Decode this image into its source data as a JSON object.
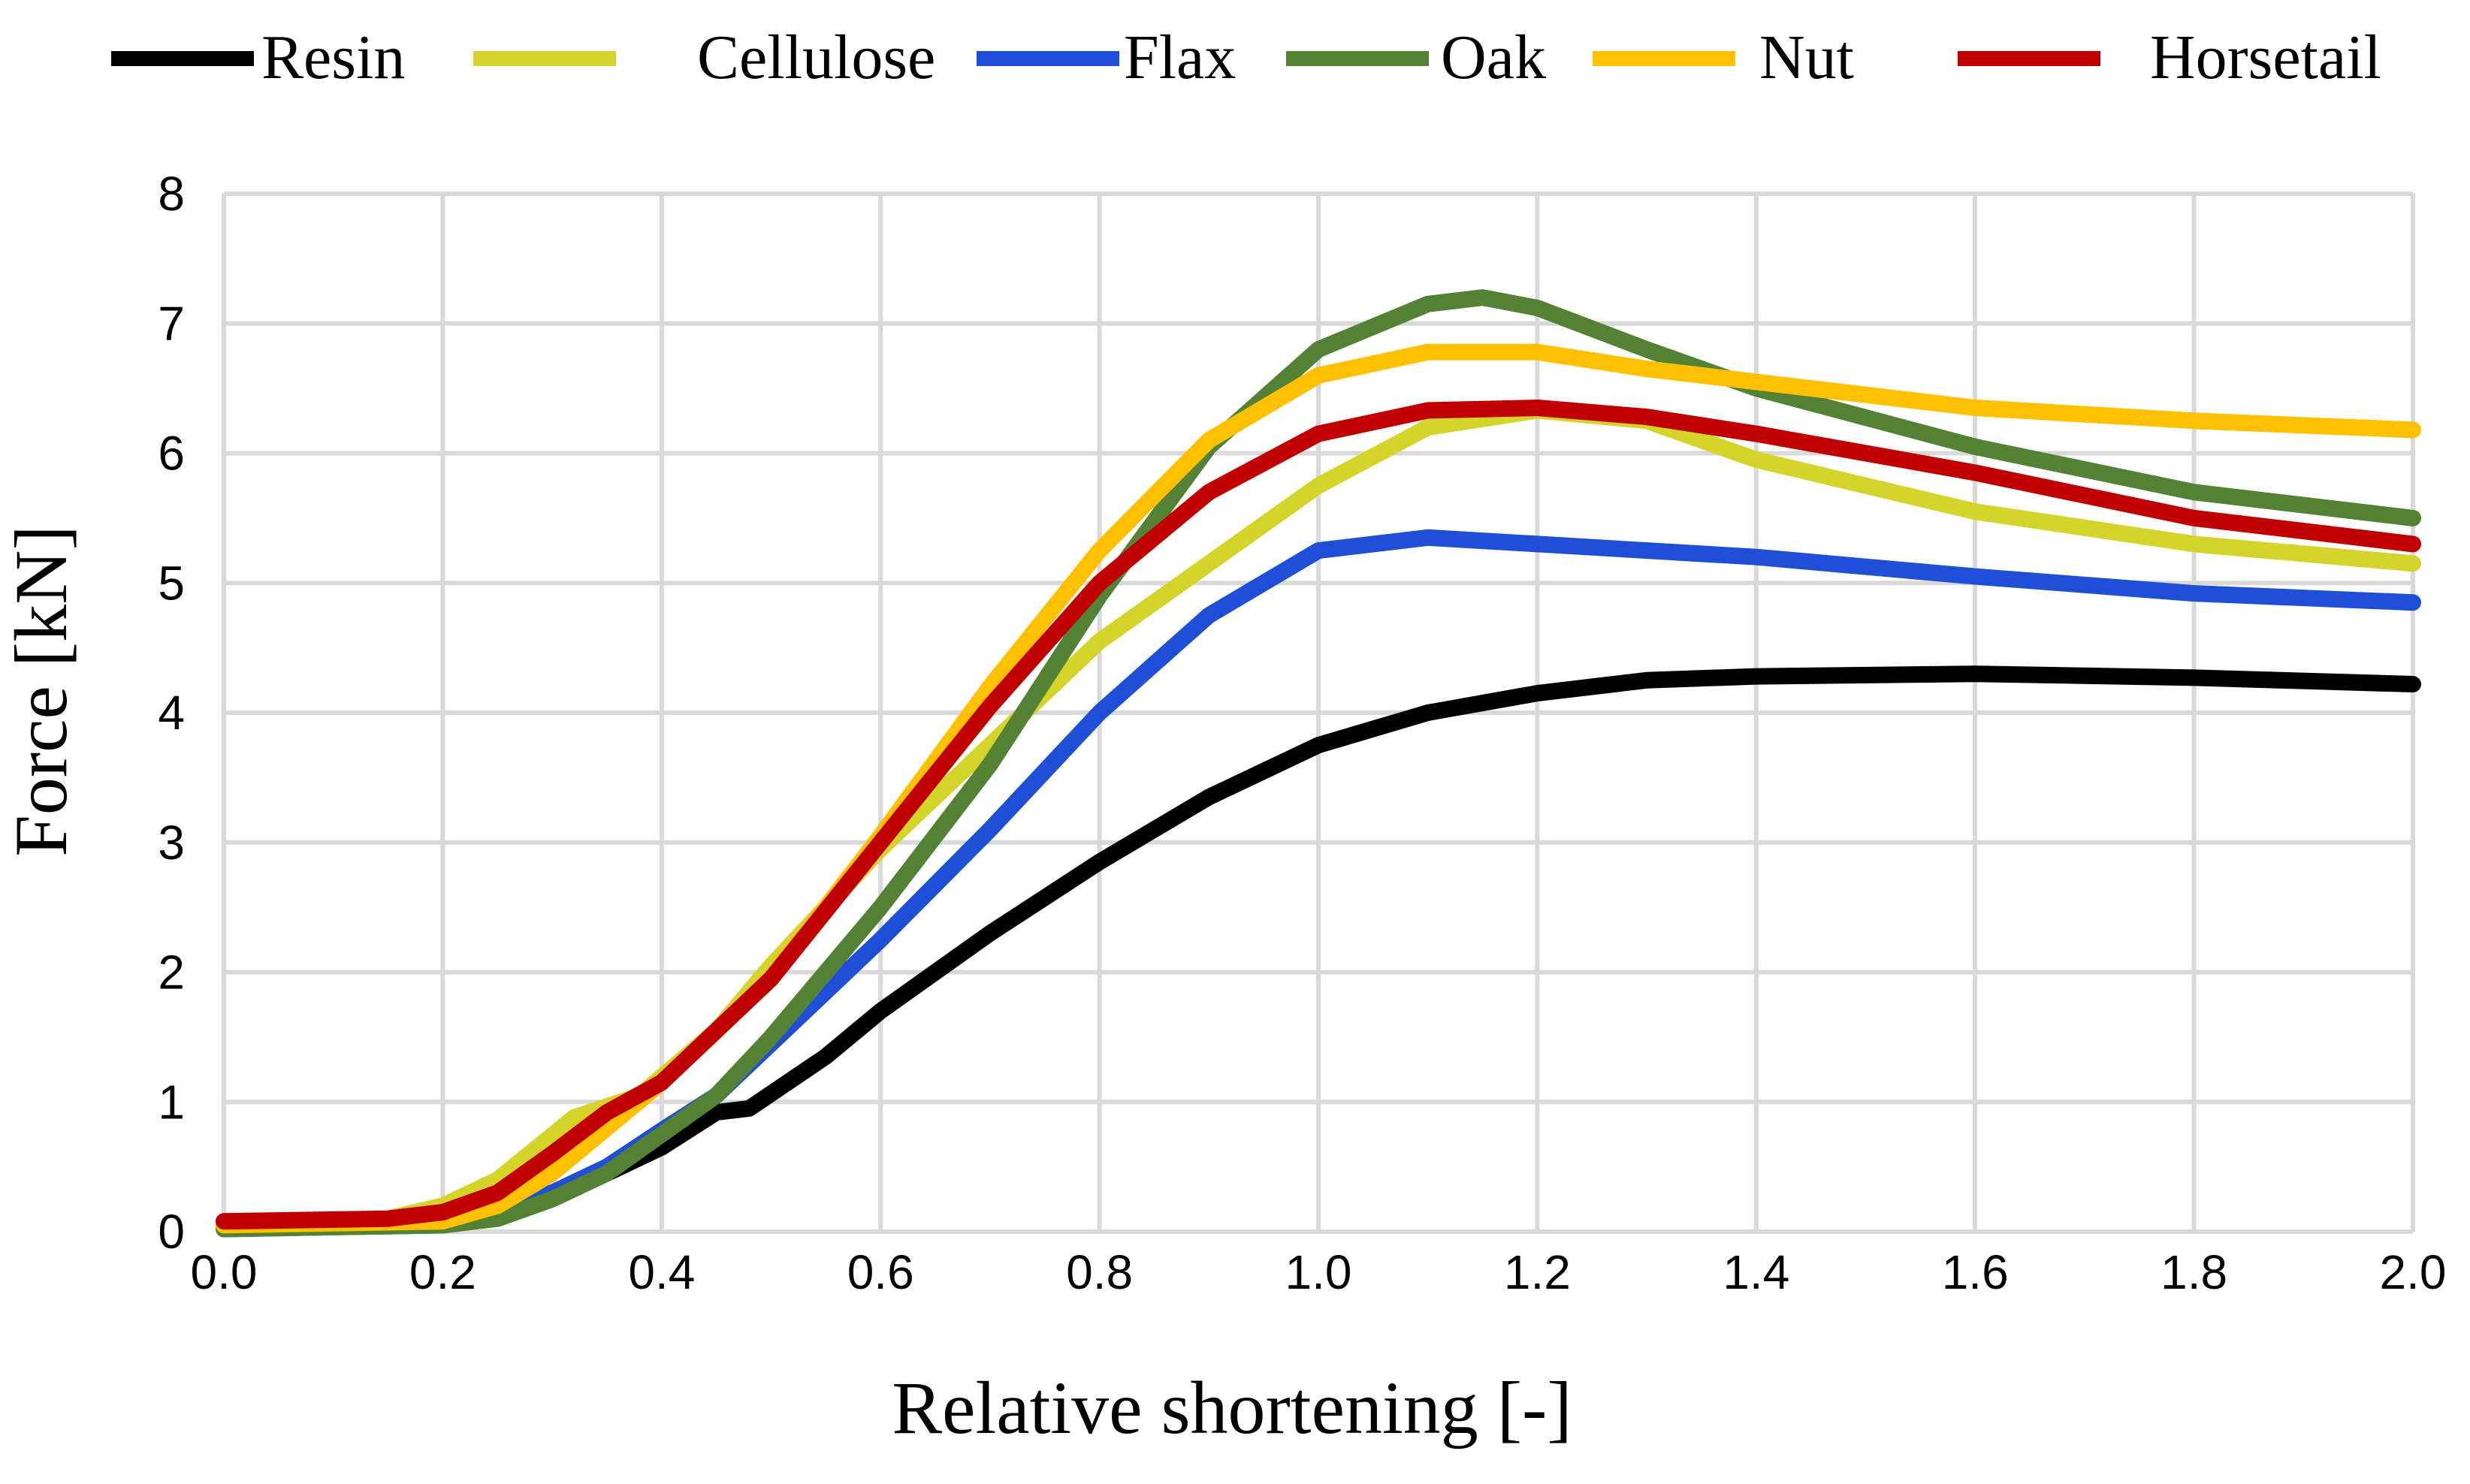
{
  "chart_data": {
    "type": "line",
    "title": "",
    "xlabel": "Relative shortening [-]",
    "ylabel": "Force [kN]",
    "xlim": [
      0,
      2
    ],
    "ylim": [
      0,
      8
    ],
    "grid": true,
    "legend_position": "top",
    "x_ticks": [
      "0.0",
      "0.2",
      "0.4",
      "0.6",
      "0.8",
      "1.0",
      "1.2",
      "1.4",
      "1.6",
      "1.8",
      "2.0"
    ],
    "y_ticks": [
      "0",
      "1",
      "2",
      "3",
      "4",
      "5",
      "6",
      "7",
      "8"
    ],
    "series": [
      {
        "name": "Resin",
        "color": "#000000",
        "points": [
          [
            0,
            0.05
          ],
          [
            0.2,
            0.1
          ],
          [
            0.3,
            0.3
          ],
          [
            0.35,
            0.45
          ],
          [
            0.4,
            0.65
          ],
          [
            0.45,
            0.92
          ],
          [
            0.48,
            0.95
          ],
          [
            0.55,
            1.35
          ],
          [
            0.6,
            1.7
          ],
          [
            0.7,
            2.3
          ],
          [
            0.8,
            2.85
          ],
          [
            0.9,
            3.35
          ],
          [
            1.0,
            3.75
          ],
          [
            1.1,
            4.0
          ],
          [
            1.2,
            4.15
          ],
          [
            1.3,
            4.25
          ],
          [
            1.4,
            4.28
          ],
          [
            1.6,
            4.3
          ],
          [
            1.8,
            4.27
          ],
          [
            2.0,
            4.22
          ]
        ]
      },
      {
        "name": "Cellulose",
        "color": "#d4d42a",
        "points": [
          [
            0,
            0.05
          ],
          [
            0.15,
            0.1
          ],
          [
            0.2,
            0.2
          ],
          [
            0.25,
            0.4
          ],
          [
            0.32,
            0.88
          ],
          [
            0.38,
            1.05
          ],
          [
            0.45,
            1.55
          ],
          [
            0.5,
            2.05
          ],
          [
            0.6,
            2.95
          ],
          [
            0.7,
            3.75
          ],
          [
            0.8,
            4.55
          ],
          [
            0.9,
            5.15
          ],
          [
            1.0,
            5.75
          ],
          [
            1.1,
            6.2
          ],
          [
            1.2,
            6.33
          ],
          [
            1.3,
            6.25
          ],
          [
            1.4,
            5.95
          ],
          [
            1.5,
            5.75
          ],
          [
            1.6,
            5.55
          ],
          [
            1.8,
            5.3
          ],
          [
            2.0,
            5.15
          ]
        ]
      },
      {
        "name": "Flax",
        "color": "#1f4fd6",
        "points": [
          [
            0,
            0.02
          ],
          [
            0.2,
            0.05
          ],
          [
            0.25,
            0.12
          ],
          [
            0.3,
            0.3
          ],
          [
            0.35,
            0.5
          ],
          [
            0.4,
            0.78
          ],
          [
            0.45,
            1.05
          ],
          [
            0.5,
            1.45
          ],
          [
            0.6,
            2.25
          ],
          [
            0.7,
            3.1
          ],
          [
            0.8,
            4.0
          ],
          [
            0.9,
            4.75
          ],
          [
            1.0,
            5.25
          ],
          [
            1.1,
            5.35
          ],
          [
            1.2,
            5.3
          ],
          [
            1.4,
            5.2
          ],
          [
            1.6,
            5.05
          ],
          [
            1.8,
            4.92
          ],
          [
            2.0,
            4.85
          ]
        ]
      },
      {
        "name": "Oak",
        "color": "#548235",
        "points": [
          [
            0,
            0.02
          ],
          [
            0.2,
            0.05
          ],
          [
            0.25,
            0.1
          ],
          [
            0.3,
            0.25
          ],
          [
            0.35,
            0.45
          ],
          [
            0.4,
            0.75
          ],
          [
            0.45,
            1.05
          ],
          [
            0.5,
            1.5
          ],
          [
            0.6,
            2.5
          ],
          [
            0.7,
            3.6
          ],
          [
            0.8,
            4.9
          ],
          [
            0.9,
            6.05
          ],
          [
            1.0,
            6.8
          ],
          [
            1.1,
            7.15
          ],
          [
            1.15,
            7.2
          ],
          [
            1.2,
            7.12
          ],
          [
            1.3,
            6.8
          ],
          [
            1.4,
            6.5
          ],
          [
            1.6,
            6.05
          ],
          [
            1.8,
            5.7
          ],
          [
            2.0,
            5.5
          ]
        ]
      },
      {
        "name": "Nut",
        "color": "#ffc000",
        "points": [
          [
            0,
            0.05
          ],
          [
            0.2,
            0.08
          ],
          [
            0.25,
            0.2
          ],
          [
            0.3,
            0.45
          ],
          [
            0.35,
            0.8
          ],
          [
            0.4,
            1.15
          ],
          [
            0.5,
            1.95
          ],
          [
            0.6,
            3.05
          ],
          [
            0.7,
            4.2
          ],
          [
            0.8,
            5.25
          ],
          [
            0.9,
            6.1
          ],
          [
            1.0,
            6.6
          ],
          [
            1.1,
            6.78
          ],
          [
            1.2,
            6.78
          ],
          [
            1.3,
            6.65
          ],
          [
            1.4,
            6.55
          ],
          [
            1.6,
            6.35
          ],
          [
            1.8,
            6.25
          ],
          [
            2.0,
            6.18
          ]
        ]
      },
      {
        "name": "Horsetail",
        "color": "#c00000",
        "points": [
          [
            0,
            0.08
          ],
          [
            0.15,
            0.1
          ],
          [
            0.2,
            0.15
          ],
          [
            0.25,
            0.3
          ],
          [
            0.3,
            0.6
          ],
          [
            0.35,
            0.92
          ],
          [
            0.4,
            1.15
          ],
          [
            0.5,
            1.95
          ],
          [
            0.6,
            3.0
          ],
          [
            0.7,
            4.05
          ],
          [
            0.8,
            5.0
          ],
          [
            0.9,
            5.7
          ],
          [
            1.0,
            6.15
          ],
          [
            1.1,
            6.33
          ],
          [
            1.2,
            6.35
          ],
          [
            1.3,
            6.28
          ],
          [
            1.4,
            6.15
          ],
          [
            1.6,
            5.85
          ],
          [
            1.8,
            5.5
          ],
          [
            2.0,
            5.3
          ]
        ]
      }
    ]
  }
}
